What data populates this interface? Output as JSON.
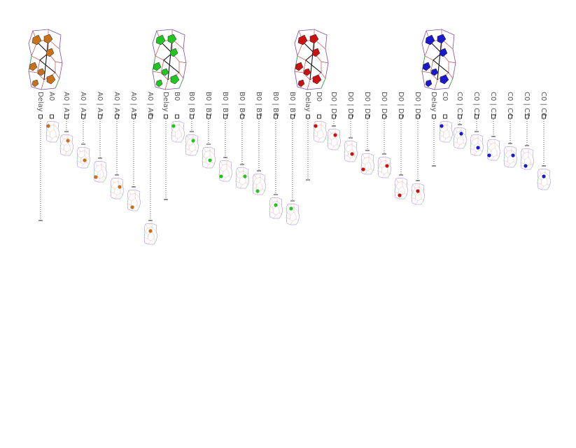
{
  "groups": [
    {
      "columns": [
        "Delay",
        "A0",
        "A0 | A1",
        "A0 | A2",
        "A0 | A3",
        "A0 | A4",
        "A0 | A5",
        "A0 | A6"
      ]
    },
    {
      "columns": [
        "Delay",
        "B0",
        "B0 | B1",
        "B0 | B2",
        "B0 | B3",
        "B0 | B4",
        "B0 | B5",
        "B0 | B6",
        "B0 | B7"
      ]
    },
    {
      "columns": [
        "Delay",
        "D0",
        "D0 | D1",
        "D0 | D2",
        "D0 | D3",
        "D0 | D4",
        "D0 | D5",
        "D0 | D6"
      ]
    },
    {
      "columns": [
        "Delay",
        "C0",
        "C0 | C1",
        "C0 | C2",
        "C0 | C3",
        "C0 | C4",
        "C0 | C5",
        "C0 | C6"
      ]
    }
  ]
}
